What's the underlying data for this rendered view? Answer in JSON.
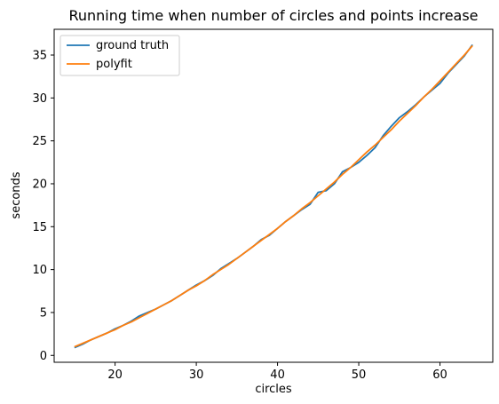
{
  "chart_data": {
    "type": "line",
    "title": "Running time when number of circles and points increase",
    "xlabel": "circles",
    "ylabel": "seconds",
    "xlim": [
      12.5,
      66.5
    ],
    "ylim": [
      -0.8,
      38
    ],
    "xticks": [
      20,
      30,
      40,
      50,
      60
    ],
    "yticks": [
      0,
      5,
      10,
      15,
      20,
      25,
      30,
      35
    ],
    "legend_position": "upper-left",
    "x": [
      15,
      16,
      17,
      18,
      19,
      20,
      21,
      22,
      23,
      24,
      25,
      26,
      27,
      28,
      29,
      30,
      31,
      32,
      33,
      34,
      35,
      36,
      37,
      38,
      39,
      40,
      41,
      42,
      43,
      44,
      45,
      46,
      47,
      48,
      49,
      50,
      51,
      52,
      53,
      54,
      55,
      56,
      57,
      58,
      59,
      60,
      61,
      62,
      63,
      64
    ],
    "series": [
      {
        "name": "ground truth",
        "color": "#1f77b4",
        "values": [
          0.9,
          1.3,
          1.8,
          2.2,
          2.6,
          3.1,
          3.5,
          4.0,
          4.6,
          5.0,
          5.4,
          5.9,
          6.4,
          7.0,
          7.6,
          8.2,
          8.7,
          9.3,
          10.1,
          10.7,
          11.3,
          12.0,
          12.7,
          13.5,
          14.0,
          14.8,
          15.6,
          16.3,
          17.0,
          17.6,
          19.0,
          19.2,
          20.0,
          21.4,
          21.9,
          22.5,
          23.3,
          24.2,
          25.6,
          26.7,
          27.7,
          28.4,
          29.2,
          30.1,
          30.9,
          31.7,
          32.9,
          33.9,
          34.9,
          36.2
        ]
      },
      {
        "name": "polyfit",
        "color": "#ff7f0e",
        "values": [
          1.0,
          1.4,
          1.8,
          2.2,
          2.6,
          3.0,
          3.5,
          3.9,
          4.4,
          4.9,
          5.4,
          5.9,
          6.4,
          7.0,
          7.6,
          8.1,
          8.7,
          9.4,
          10.0,
          10.6,
          11.3,
          12.0,
          12.7,
          13.4,
          14.1,
          14.8,
          15.6,
          16.3,
          17.1,
          17.8,
          18.6,
          19.4,
          20.2,
          21.1,
          21.9,
          22.8,
          23.7,
          24.5,
          25.4,
          26.3,
          27.3,
          28.2,
          29.1,
          30.1,
          31.0,
          32.0,
          33.0,
          34.0,
          35.0,
          36.1
        ]
      }
    ]
  }
}
